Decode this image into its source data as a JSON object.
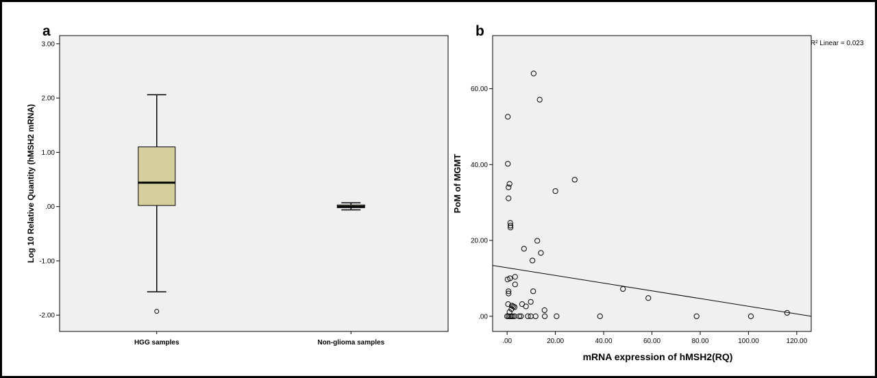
{
  "panel_a_label": "a",
  "panel_b_label": "b",
  "chart_data": [
    {
      "type": "box",
      "panel": "a",
      "title": "",
      "xlabel": "",
      "ylabel": "Log 10 Relative Quantity (hMSH2 mRNA)",
      "ylim": [
        -2.3,
        3.15
      ],
      "yticks": [
        3.0,
        2.0,
        1.0,
        0.0,
        -1.0,
        -2.0
      ],
      "ytick_labels": [
        "3.00",
        "2.00",
        "1.00",
        ".00",
        "-1.00",
        "-2.00"
      ],
      "categories": [
        "HGG samples",
        "Non-glioma samples"
      ],
      "boxes": [
        {
          "category": "HGG samples",
          "whisker_low": -1.57,
          "q1": 0.02,
          "median": 0.44,
          "q3": 1.1,
          "whisker_high": 2.06,
          "outliers": [
            -1.93
          ],
          "color": "#d4cf9c"
        },
        {
          "category": "Non-glioma samples",
          "whisker_low": -0.06,
          "q1": -0.02,
          "median": 0.0,
          "q3": 0.03,
          "whisker_high": 0.07,
          "outliers": [],
          "color": "#d4cf9c"
        }
      ],
      "grid": false,
      "background": "#f0f0f0"
    },
    {
      "type": "scatter",
      "panel": "b",
      "title": "",
      "xlabel": "mRNA expression of hMSH2(RQ)",
      "ylabel": "PoM of MGMT",
      "xlim": [
        -6,
        126
      ],
      "ylim": [
        -4,
        74
      ],
      "xticks": [
        0,
        20,
        40,
        60,
        80,
        100,
        120
      ],
      "xtick_labels": [
        ".00",
        "20.00",
        "40.00",
        "60.00",
        "80.00",
        "100.00",
        "120.00"
      ],
      "yticks": [
        0,
        20,
        40,
        60
      ],
      "ytick_labels": [
        ".00",
        "20.00",
        "40.00",
        "60.00"
      ],
      "annotation": "R² Linear = 0.023",
      "fit_line": {
        "x": [
          -6,
          126
        ],
        "y": [
          13.4,
          0.0
        ]
      },
      "points": [
        {
          "x": 11,
          "y": 64
        },
        {
          "x": 13.5,
          "y": 57.1
        },
        {
          "x": 0.3,
          "y": 52.6
        },
        {
          "x": 0.3,
          "y": 40.2
        },
        {
          "x": 28,
          "y": 36
        },
        {
          "x": 1.0,
          "y": 34.9
        },
        {
          "x": 0.6,
          "y": 34.0
        },
        {
          "x": 20,
          "y": 33
        },
        {
          "x": 0.6,
          "y": 31.1
        },
        {
          "x": 1.3,
          "y": 24.6
        },
        {
          "x": 1.4,
          "y": 23.9
        },
        {
          "x": 1.4,
          "y": 23.4
        },
        {
          "x": 12.5,
          "y": 19.9
        },
        {
          "x": 7,
          "y": 17.8
        },
        {
          "x": 14,
          "y": 16.7
        },
        {
          "x": 10.5,
          "y": 14.7
        },
        {
          "x": 3.3,
          "y": 10.4
        },
        {
          "x": 1.2,
          "y": 10.0
        },
        {
          "x": 0.2,
          "y": 9.7
        },
        {
          "x": 3.3,
          "y": 8.4
        },
        {
          "x": 0.6,
          "y": 6.6
        },
        {
          "x": 0.6,
          "y": 6.0
        },
        {
          "x": 10.8,
          "y": 6.6
        },
        {
          "x": 48,
          "y": 7.2
        },
        {
          "x": 58.5,
          "y": 4.8
        },
        {
          "x": 9.8,
          "y": 3.8
        },
        {
          "x": 6.2,
          "y": 3.2
        },
        {
          "x": 0.4,
          "y": 3.2
        },
        {
          "x": 2.0,
          "y": 2.8
        },
        {
          "x": 7.8,
          "y": 2.6
        },
        {
          "x": 2.6,
          "y": 2.6
        },
        {
          "x": 3.1,
          "y": 2.4
        },
        {
          "x": 1.8,
          "y": 1.9
        },
        {
          "x": 15.5,
          "y": 1.6
        },
        {
          "x": 1.0,
          "y": 1.1
        },
        {
          "x": 116,
          "y": 0.9
        },
        {
          "x": 0,
          "y": 0
        },
        {
          "x": 0.6,
          "y": 0
        },
        {
          "x": 1.2,
          "y": 0
        },
        {
          "x": 1.8,
          "y": 0
        },
        {
          "x": 2.4,
          "y": 0
        },
        {
          "x": 3.1,
          "y": 0
        },
        {
          "x": 5.0,
          "y": 0
        },
        {
          "x": 5.7,
          "y": 0
        },
        {
          "x": 8.6,
          "y": 0
        },
        {
          "x": 9.8,
          "y": 0
        },
        {
          "x": 11.8,
          "y": 0
        },
        {
          "x": 15.6,
          "y": 0
        },
        {
          "x": 20.5,
          "y": 0
        },
        {
          "x": 38.5,
          "y": 0
        },
        {
          "x": 78.5,
          "y": 0
        },
        {
          "x": 101,
          "y": 0
        }
      ],
      "grid": false,
      "background": "#f0f0f0"
    }
  ]
}
